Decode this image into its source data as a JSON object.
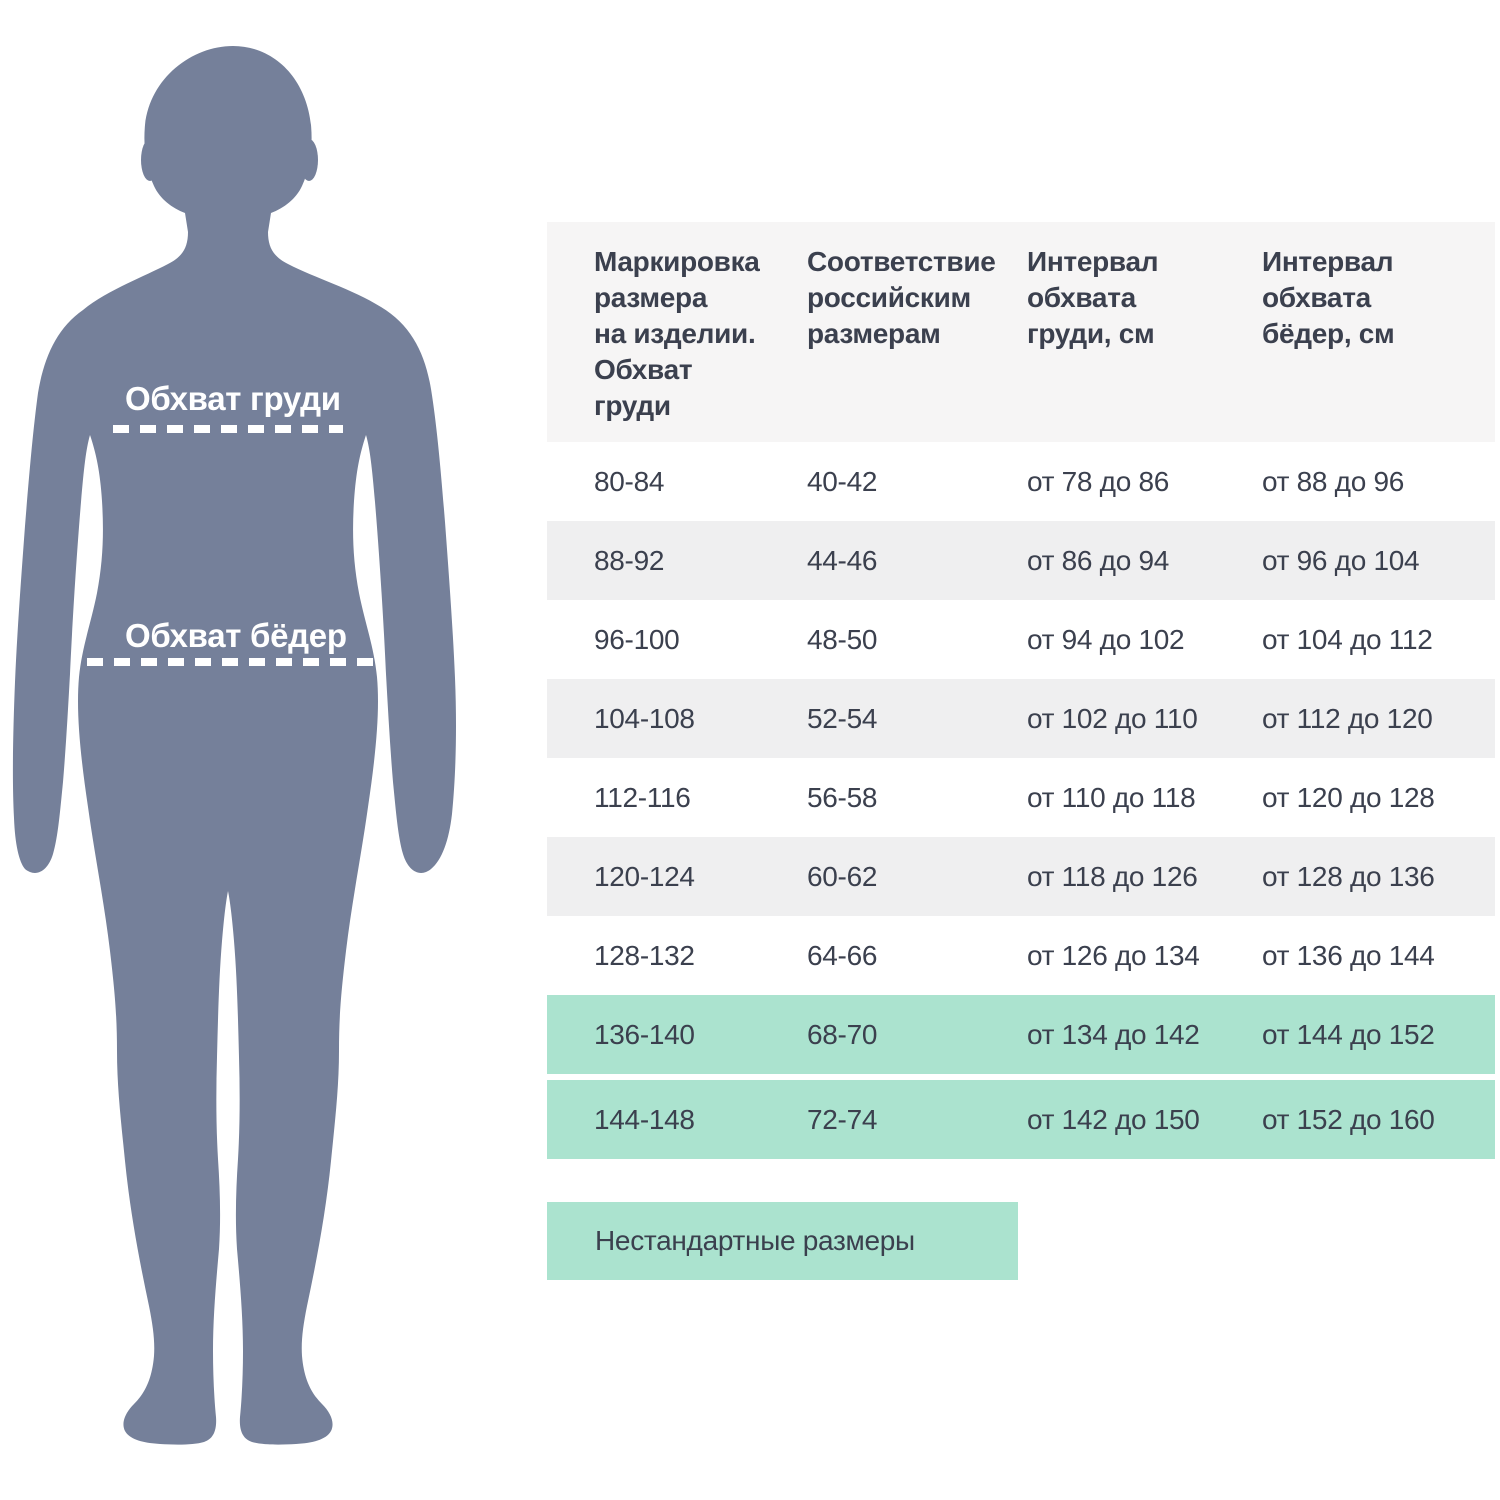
{
  "figure": {
    "chest_label": "Обхват груди",
    "hips_label": "Обхват бёдер"
  },
  "table": {
    "headers": [
      "Маркировка\nразмера\nна изделии.\nОбхват\nгруди",
      "Соответствие\nроссийским\nразмерам",
      "Интервал\nобхвата\nгруди, см",
      "Интервал\nобхвата\nбёдер, см"
    ],
    "rows": [
      {
        "cells": [
          "80-84",
          "40-42",
          "от 78 до 86",
          "от 88 до 96"
        ],
        "nonstandard": false
      },
      {
        "cells": [
          "88-92",
          "44-46",
          "от 86 до 94",
          "от 96 до 104"
        ],
        "nonstandard": false
      },
      {
        "cells": [
          "96-100",
          "48-50",
          "от 94 до 102",
          "от 104 до 112"
        ],
        "nonstandard": false
      },
      {
        "cells": [
          "104-108",
          "52-54",
          "от 102 до 110",
          "от 112 до 120"
        ],
        "nonstandard": false
      },
      {
        "cells": [
          "112-116",
          "56-58",
          "от 110 до 118",
          "от 120 до 128"
        ],
        "nonstandard": false
      },
      {
        "cells": [
          "120-124",
          "60-62",
          "от 118 до 126",
          "от 128 до 136"
        ],
        "nonstandard": false
      },
      {
        "cells": [
          "128-132",
          "64-66",
          "от 126 до 134",
          "от 136 до 144"
        ],
        "nonstandard": false
      },
      {
        "cells": [
          "136-140",
          "68-70",
          "от 134 до 142",
          "от 144 до 152"
        ],
        "nonstandard": true
      },
      {
        "cells": [
          "144-148",
          "72-74",
          "от 142 до 150",
          "от 152 до 160"
        ],
        "nonstandard": true
      }
    ]
  },
  "legend": {
    "label": "Нестандартные размеры"
  },
  "colors": {
    "silhouette": "#75809A",
    "highlight_green": "#ABE3CF",
    "row_gray": "#EFEFF0",
    "header_bg": "#F6F5F5",
    "text": "#3B404E",
    "figure_label": "#FFFFFF"
  }
}
